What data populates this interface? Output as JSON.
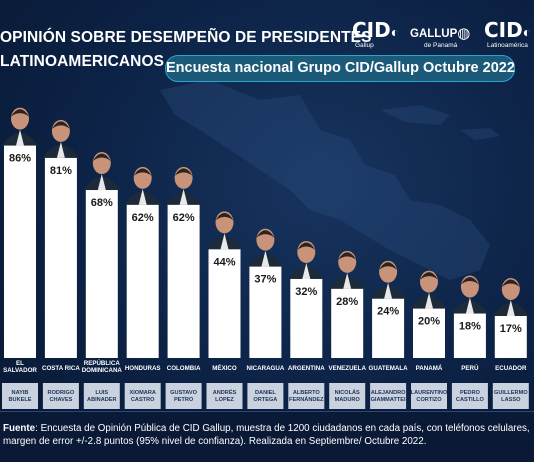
{
  "title_line1": "OPINIÓN SOBRE DESEMPEÑO DE PRESIDENTES",
  "title_line2": "LATINOAMERICANOS",
  "subtitle": "Encuesta nacional Grupo CID/Gallup Octubre 2022",
  "logos": {
    "cid1_big": "CID",
    "cid1_small": "Gallup",
    "gallup_big": "GALLUP",
    "gallup_small": "de Panamá",
    "cid2_big": "CID",
    "cid2_small": "Latinoamérica"
  },
  "source_label": "Fuente",
  "source_text": ": Encuesta de Opinión Pública de CID Gallup, muestra de 1200 ciudadanos en cada país, con teléfonos celulares, margen de error +/-2.8 puntos (95% nivel de confianza).  Realizada en Septiembre/ Octubre 2022.",
  "colors": {
    "background": "#0c2245",
    "bars": "#ffffff",
    "accent": "#2ea3c8",
    "name_box": "#c9d2de"
  },
  "chart_data": {
    "type": "bar",
    "title": "OPINIÓN SOBRE DESEMPEÑO DE PRESIDENTES LATINOAMERICANOS",
    "ylim": [
      0,
      100
    ],
    "categories": [
      "EL SALVADOR",
      "COSTA RICA",
      "REPÚBLICA DOMINICANA",
      "HONDURAS",
      "COLOMBIA",
      "MÉXICO",
      "NICARAGUA",
      "ARGENTINA",
      "VENEZUELA",
      "GUATEMALA",
      "PANAMÁ",
      "PERÚ",
      "ECUADOR"
    ],
    "presidents": [
      "NAYIB BUKELE",
      "RODRIGO CHAVES",
      "LUIS ABINADER",
      "XIOMARA CASTRO",
      "GUSTAVO PETRO",
      "ANDRÉS LOPEZ",
      "DANIEL ORTEGA",
      "ALBERTO FERNÁNDEZ",
      "NICOLÁS MADURO",
      "ALEJANDRO GIAMMATTEI",
      "LAURENTINO CORTIZO",
      "PEDRO CASTILLO",
      "GUILLERMO LASSO"
    ],
    "values": [
      86,
      81,
      68,
      62,
      62,
      44,
      37,
      32,
      28,
      24,
      20,
      18,
      17
    ],
    "labels": [
      "86%",
      "81%",
      "68%",
      "62%",
      "62%",
      "44%",
      "37%",
      "32%",
      "28%",
      "24%",
      "20%",
      "18%",
      "17%"
    ]
  }
}
